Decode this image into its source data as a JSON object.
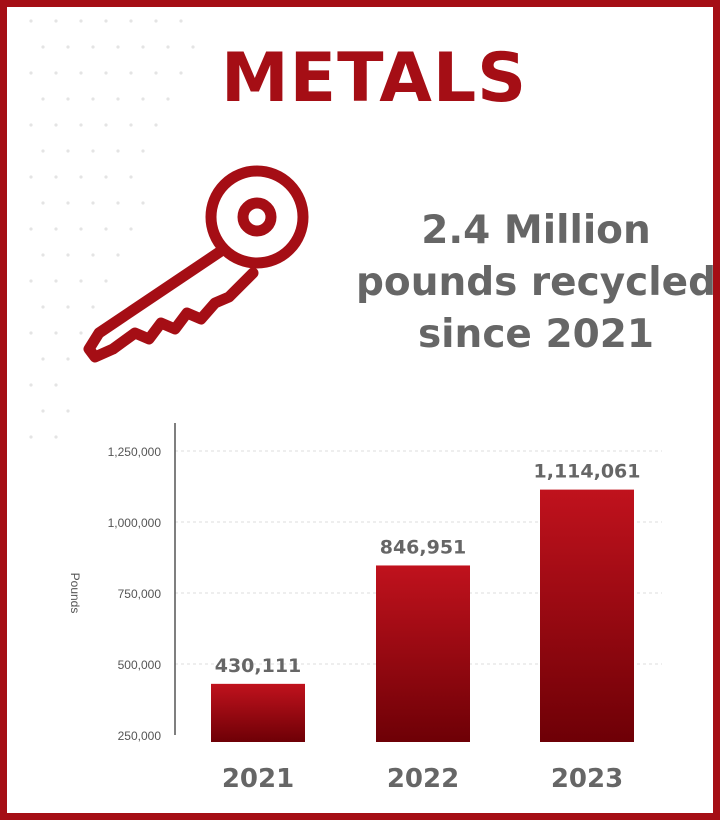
{
  "header": {
    "title": "METALS",
    "headline_lines": [
      "2.4 Million",
      "pounds recycled",
      "since 2021"
    ]
  },
  "icons": {
    "illustration": "key-icon"
  },
  "colors": {
    "brand_red": "#a50e15",
    "bar_top": "#c0121d",
    "bar_bottom": "#6e0006",
    "text_gray": "#666666",
    "axis_gray": "#555555",
    "grid": "#dddddd"
  },
  "chart_data": {
    "type": "bar",
    "categories": [
      "2021",
      "2022",
      "2023"
    ],
    "values": [
      430111,
      846951,
      1114061
    ],
    "value_labels": [
      "430,111",
      "846,951",
      "1,114,061"
    ],
    "title": "",
    "xlabel": "",
    "ylabel": "Pounds",
    "ylim": [
      250000,
      1250000
    ],
    "yticks": [
      250000,
      500000,
      750000,
      1000000,
      1250000
    ],
    "ytick_labels": [
      "250,000",
      "500,000",
      "750,000",
      "1,000,000",
      "1,250,000"
    ],
    "grid": true,
    "legend": "none"
  }
}
